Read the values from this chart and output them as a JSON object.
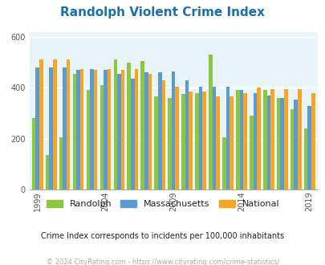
{
  "title": "Randolph Violent Crime Index",
  "years": [
    1999,
    2000,
    2001,
    2002,
    2003,
    2004,
    2005,
    2006,
    2007,
    2008,
    2009,
    2010,
    2011,
    2012,
    2013,
    2014,
    2015,
    2016,
    2017,
    2018,
    2019,
    2020,
    2021
  ],
  "randolph": [
    280,
    135,
    205,
    455,
    390,
    410,
    510,
    500,
    505,
    365,
    360,
    375,
    380,
    530,
    205,
    390,
    290,
    390,
    360,
    315,
    240,
    0,
    0
  ],
  "massachusetts": [
    480,
    480,
    480,
    470,
    475,
    470,
    455,
    435,
    460,
    460,
    465,
    430,
    405,
    405,
    405,
    390,
    380,
    370,
    360,
    355,
    328,
    0,
    0
  ],
  "national": [
    510,
    510,
    510,
    475,
    470,
    475,
    470,
    475,
    455,
    430,
    405,
    385,
    385,
    365,
    365,
    380,
    400,
    395,
    395,
    395,
    380,
    0,
    0
  ],
  "valid_count": 21,
  "colors": {
    "randolph": "#8dc63f",
    "massachusetts": "#5b9bd5",
    "national": "#f5a623"
  },
  "ylim": [
    0,
    620
  ],
  "yticks": [
    0,
    200,
    400,
    600
  ],
  "bg_color": "#e8f4f8",
  "grid_color": "#ffffff",
  "subtitle": "Crime Index corresponds to incidents per 100,000 inhabitants",
  "footer": "© 2024 CityRating.com - https://www.cityrating.com/crime-statistics/",
  "tick_years": [
    1999,
    2004,
    2009,
    2014,
    2019
  ],
  "title_color": "#1a6faf",
  "subtitle_color": "#222222",
  "footer_color": "#aaaaaa",
  "legend_label_color": "#222222"
}
